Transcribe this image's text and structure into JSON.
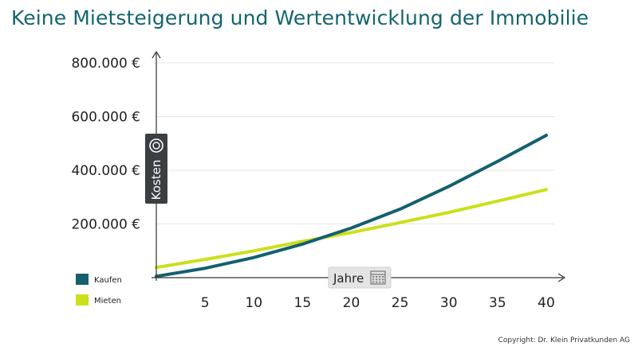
{
  "title": "Keine Mietsteigerung und Wertentwicklung der Immobilie",
  "copyright": "Copyright: Dr. Klein Privatkunden AG",
  "colors": {
    "title": "#146570",
    "kaufen": "#14606e",
    "mieten": "#cbe01a",
    "axis": "#333333",
    "grid": "#e6e6e6",
    "badge_dark": "#3a3f42",
    "badge_light": "#e4e4e4"
  },
  "icons": {
    "y_axis_badge": "coin-icon",
    "x_axis_badge": "calendar-icon"
  },
  "chart_data": {
    "type": "line",
    "xlabel": "Jahre",
    "ylabel": "Kosten",
    "xlim": [
      0,
      40
    ],
    "ylim": [
      0,
      800000
    ],
    "x_ticks": [
      "5",
      "10",
      "15",
      "20",
      "25",
      "30",
      "35",
      "40"
    ],
    "y_ticks": [
      "200.000 €",
      "400.000 €",
      "600.000 €",
      "800.000 €"
    ],
    "grid": true,
    "legend_position": "bottom-left",
    "series": [
      {
        "name": "Kaufen",
        "x": [
          0,
          5,
          10,
          15,
          20,
          25,
          30,
          35,
          40
        ],
        "y": [
          5000,
          35000,
          75000,
          125000,
          185000,
          255000,
          340000,
          433000,
          530000
        ]
      },
      {
        "name": "Mieten",
        "x": [
          0,
          5,
          10,
          15,
          20,
          25,
          30,
          35,
          40
        ],
        "y": [
          38000,
          68000,
          100000,
          135000,
          168000,
          205000,
          243000,
          285000,
          328000
        ]
      }
    ]
  }
}
